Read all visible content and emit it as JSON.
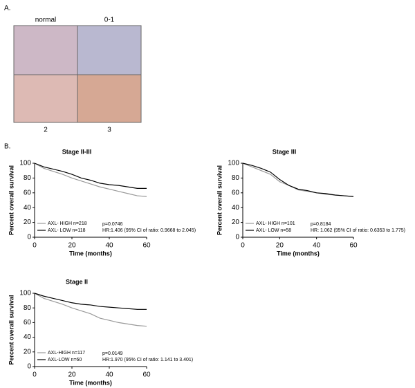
{
  "panel_a": {
    "label": "A.",
    "images": [
      "normal",
      "0-1",
      "2",
      "3"
    ]
  },
  "panel_b": {
    "label": "B."
  },
  "chart_data": [
    {
      "type": "line",
      "title": "Stage II-III",
      "xlabel": "Time (months)",
      "ylabel": "Percent overall survival",
      "xlim": [
        0,
        60
      ],
      "ylim": [
        0,
        100
      ],
      "xticks": [
        0,
        20,
        40,
        60
      ],
      "yticks": [
        0,
        20,
        40,
        60,
        80,
        100
      ],
      "x": [
        0,
        5,
        10,
        15,
        20,
        25,
        30,
        35,
        40,
        45,
        50,
        55,
        60
      ],
      "series": [
        {
          "name": "AXL- HIGH n=218",
          "color": "#999999",
          "values": [
            100,
            93,
            89,
            85,
            80,
            76,
            72,
            68,
            65,
            62,
            59,
            56,
            55
          ]
        },
        {
          "name": "AXL- LOW n=118",
          "color": "#000000",
          "values": [
            100,
            95,
            92,
            89,
            85,
            80,
            77,
            73,
            71,
            70,
            68,
            66,
            66
          ]
        }
      ],
      "annotations": [
        "p=0.0746",
        "HR:1.406 (95% CI of ratio: 0.9668 to 2.045)"
      ]
    },
    {
      "type": "line",
      "title": "Stage III",
      "xlabel": "Time (months)",
      "ylabel": "Percent overall survival",
      "xlim": [
        0,
        60
      ],
      "ylim": [
        0,
        100
      ],
      "xticks": [
        0,
        20,
        40,
        60
      ],
      "yticks": [
        0,
        20,
        40,
        60,
        80,
        100
      ],
      "x": [
        0,
        5,
        10,
        15,
        20,
        25,
        30,
        35,
        40,
        45,
        50,
        55,
        60
      ],
      "series": [
        {
          "name": "AXL- HIGH n=101",
          "color": "#999999",
          "values": [
            100,
            95,
            90,
            85,
            75,
            70,
            64,
            62,
            60,
            58,
            57,
            56,
            55
          ]
        },
        {
          "name": "AXL- LOW n=58",
          "color": "#000000",
          "values": [
            100,
            97,
            93,
            88,
            78,
            70,
            65,
            63,
            60,
            59,
            57,
            56,
            55
          ]
        }
      ],
      "annotations": [
        "p=0.8184",
        "HR: 1.062 (95% CI of ratio: 0.6353 to 1.775)"
      ]
    },
    {
      "type": "line",
      "title": "Stage II",
      "xlabel": "Time (months)",
      "ylabel": "Percent overall survival",
      "xlim": [
        0,
        60
      ],
      "ylim": [
        0,
        100
      ],
      "xticks": [
        0,
        20,
        40,
        60
      ],
      "yticks": [
        0,
        20,
        40,
        60,
        80,
        100
      ],
      "x": [
        0,
        5,
        10,
        15,
        20,
        25,
        30,
        35,
        40,
        45,
        50,
        55,
        60
      ],
      "series": [
        {
          "name": "AXL-HIGH n=117",
          "color": "#999999",
          "values": [
            100,
            93,
            89,
            85,
            80,
            76,
            72,
            66,
            63,
            60,
            58,
            56,
            55
          ]
        },
        {
          "name": "AXL-LOW n=60",
          "color": "#000000",
          "values": [
            100,
            96,
            93,
            90,
            87,
            85,
            84,
            82,
            81,
            80,
            79,
            78,
            78
          ]
        }
      ],
      "annotations": [
        "p=0.0149",
        "HR:1.970 (95% CI of ratio: 1.141 to 3.401)"
      ]
    }
  ]
}
